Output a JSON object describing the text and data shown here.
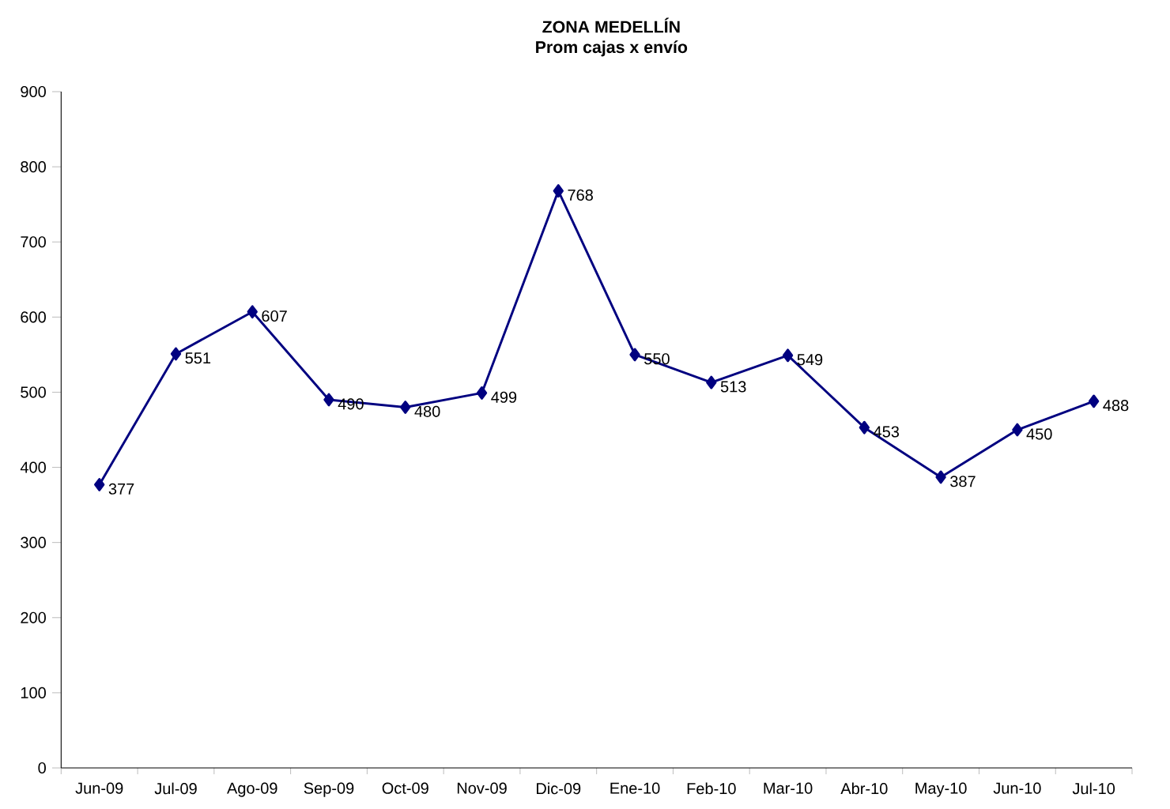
{
  "chart_data": {
    "type": "line",
    "title": "ZONA MEDELLÍN",
    "subtitle": "Prom cajas x envío",
    "categories": [
      "Jun-09",
      "Jul-09",
      "Ago-09",
      "Sep-09",
      "Oct-09",
      "Nov-09",
      "Dic-09",
      "Ene-10",
      "Feb-10",
      "Mar-10",
      "Abr-10",
      "May-10",
      "Jun-10",
      "Jul-10"
    ],
    "values": [
      377,
      551,
      607,
      490,
      480,
      499,
      768,
      550,
      513,
      549,
      453,
      387,
      450,
      488
    ],
    "color": "#000080",
    "marker": "diamond",
    "line_style": "solid",
    "data_labels": true,
    "grid": false,
    "ylim": [
      0,
      900
    ],
    "yticks": [
      0,
      100,
      200,
      300,
      400,
      500,
      600,
      700,
      800,
      900
    ]
  }
}
